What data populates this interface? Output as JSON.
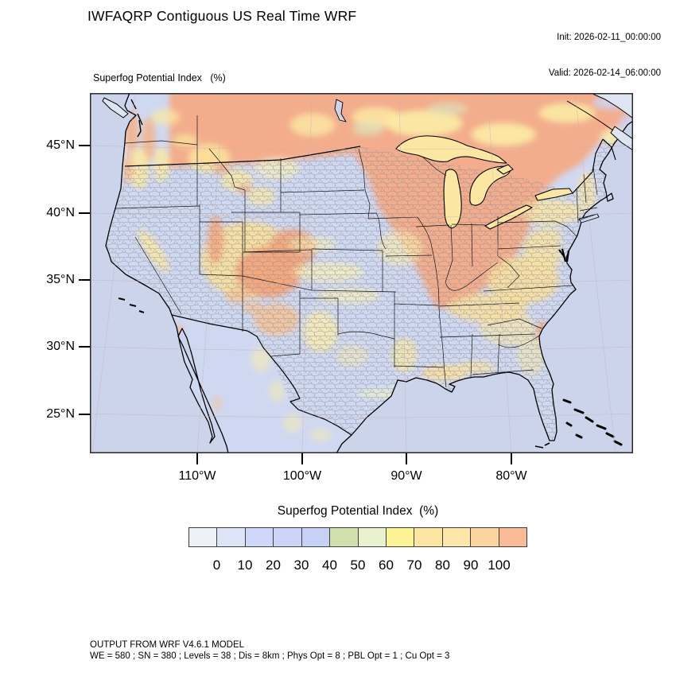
{
  "header": {
    "title": "IWFAQRP Contiguous US Real Time WRF",
    "init_label": "Init: 2026-02-11_00:00:00",
    "valid_label": "Valid: 2026-02-14_06:00:00"
  },
  "map": {
    "field_label": "Superfog Potential Index   (%)",
    "lat_ticks": [
      "45°N",
      "40°N",
      "35°N",
      "30°N",
      "25°N"
    ],
    "lon_ticks": [
      "110°W",
      "100°W",
      "90°W",
      "80°W"
    ],
    "ocean_color": "#ccd4ec",
    "land_low_color": "#cfd8f1",
    "high_color": "#f4ab86",
    "lake_fill_color": "#fbe7a2"
  },
  "colorbar": {
    "title": "Superfog Potential Index  (%)",
    "ticks": [
      "0",
      "10",
      "20",
      "30",
      "40",
      "50",
      "60",
      "70",
      "80",
      "90",
      "100"
    ],
    "cells": [
      "#edf0f6",
      "#dfe5f9",
      "#cfd8f8",
      "#cbd4f7",
      "#c7d1f6",
      "#cfe0ab",
      "#e9f1cf",
      "#fbf394",
      "#fce5a2",
      "#fce7a8",
      "#fbd49e",
      "#f8bb95"
    ]
  },
  "footer": {
    "line1": "OUTPUT FROM WRF V4.6.1 MODEL",
    "line2": "WE = 580 ; SN = 380 ; Levels = 38 ; Dis = 8km ; Phys Opt = 8 ; PBL Opt = 1 ; Cu Opt = 3"
  }
}
